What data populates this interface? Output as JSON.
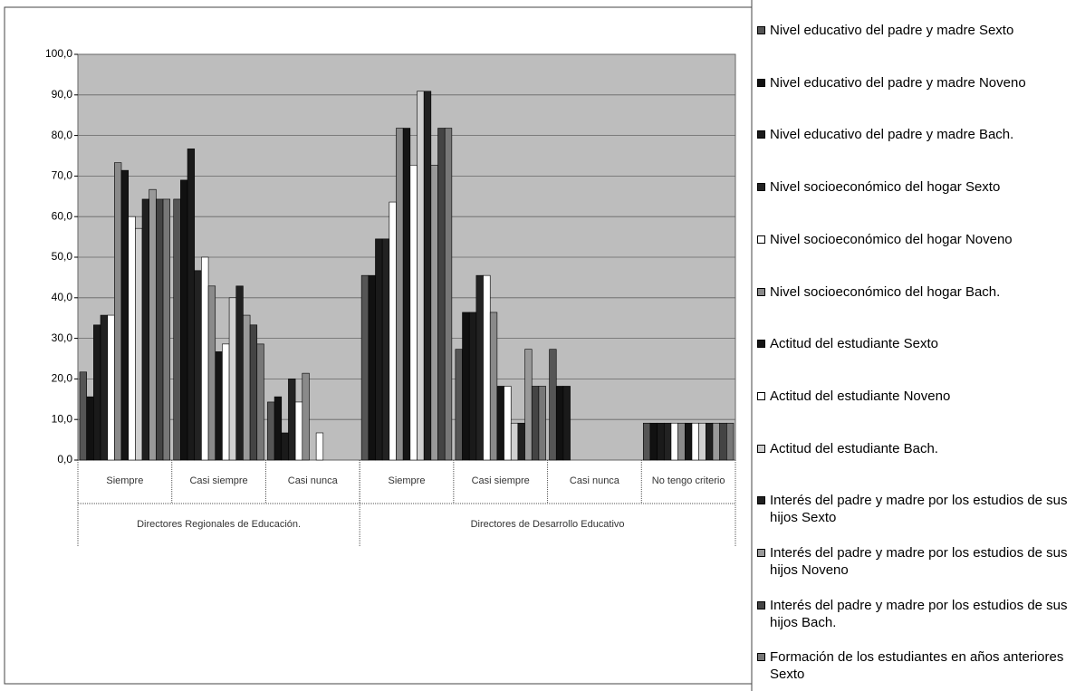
{
  "chart_data": {
    "type": "bar",
    "category_groups": [
      {
        "label": "Directores Regionales de Educación.",
        "categories": [
          "Siempre",
          "Casi siempre",
          "Casi nunca"
        ]
      },
      {
        "label": "Directores de Desarrollo Educativo",
        "categories": [
          "Siempre",
          "Casi siempre",
          "Casi nunca",
          "No tengo criterio"
        ]
      }
    ],
    "ylim": [
      0,
      100
    ],
    "yticks": [
      {
        "value": 0,
        "label": "0,0"
      },
      {
        "value": 10,
        "label": "10,0"
      },
      {
        "value": 20,
        "label": "20,0"
      },
      {
        "value": 30,
        "label": "30,0"
      },
      {
        "value": 40,
        "label": "40,0"
      },
      {
        "value": 50,
        "label": "50,0"
      },
      {
        "value": 60,
        "label": "60,0"
      },
      {
        "value": 70,
        "label": "70,0"
      },
      {
        "value": 80,
        "label": "80,0"
      },
      {
        "value": 90,
        "label": "90,0"
      },
      {
        "value": 100,
        "label": "100,0"
      }
    ],
    "grid": true,
    "legend": "right",
    "series": [
      {
        "name": "Nivel educativo del padre y madre Sexto",
        "color": "#555555",
        "values": [
          21.7,
          64.3,
          14.3,
          45.5,
          27.3,
          27.3,
          9.1
        ]
      },
      {
        "name": "Nivel educativo del padre y madre Noveno",
        "color": "#111111",
        "values": [
          15.6,
          69.0,
          15.6,
          45.5,
          36.4,
          18.2,
          9.1
        ]
      },
      {
        "name": "Nivel educativo del padre y madre Bach.",
        "color": "#1a1a1a",
        "values": [
          33.3,
          76.7,
          6.7,
          54.5,
          36.4,
          18.2,
          9.1
        ]
      },
      {
        "name": "Nivel socioeconómico del hogar Sexto",
        "color": "#222222",
        "values": [
          35.7,
          46.7,
          20.0,
          54.5,
          45.5,
          0,
          9.1
        ]
      },
      {
        "name": "Nivel socioeconómico del hogar Noveno",
        "color": "#ffffff",
        "values": [
          35.7,
          50.0,
          14.3,
          63.6,
          45.5,
          0,
          9.1
        ]
      },
      {
        "name": "Nivel socioeconómico del hogar Bach.",
        "color": "#8a8a8a",
        "values": [
          73.3,
          42.9,
          21.4,
          81.8,
          36.4,
          0,
          9.1
        ]
      },
      {
        "name": "Actitud del estudiante Sexto",
        "color": "#151515",
        "values": [
          71.4,
          26.7,
          0,
          81.8,
          18.2,
          0,
          9.1
        ]
      },
      {
        "name": "Actitud del estudiante Noveno",
        "color": "#ffffff",
        "values": [
          60.0,
          28.6,
          6.7,
          72.7,
          18.2,
          0,
          9.1
        ]
      },
      {
        "name": "Actitud del estudiante Bach.",
        "color": "#d0d0d0",
        "values": [
          57.1,
          40.0,
          0,
          90.9,
          9.1,
          0,
          9.1
        ]
      },
      {
        "name": "Interés del padre y madre por los estudios de sus hijos Sexto",
        "color": "#202020",
        "values": [
          64.3,
          42.9,
          0,
          90.9,
          9.1,
          0,
          9.1
        ]
      },
      {
        "name": "Interés del padre y madre por los estudios de sus hijos Noveno",
        "color": "#999999",
        "values": [
          66.7,
          35.7,
          0,
          72.7,
          27.3,
          0,
          9.1
        ]
      },
      {
        "name": "Interés del padre y madre por los estudios de sus hijos Bach.",
        "color": "#444444",
        "values": [
          64.3,
          33.3,
          0,
          81.8,
          18.2,
          0,
          9.1
        ]
      },
      {
        "name": "Formación de los estudiantes en años anteriores Sexto",
        "color": "#777777",
        "values": [
          64.3,
          28.6,
          0,
          81.8,
          18.2,
          0,
          9.1
        ]
      }
    ]
  }
}
